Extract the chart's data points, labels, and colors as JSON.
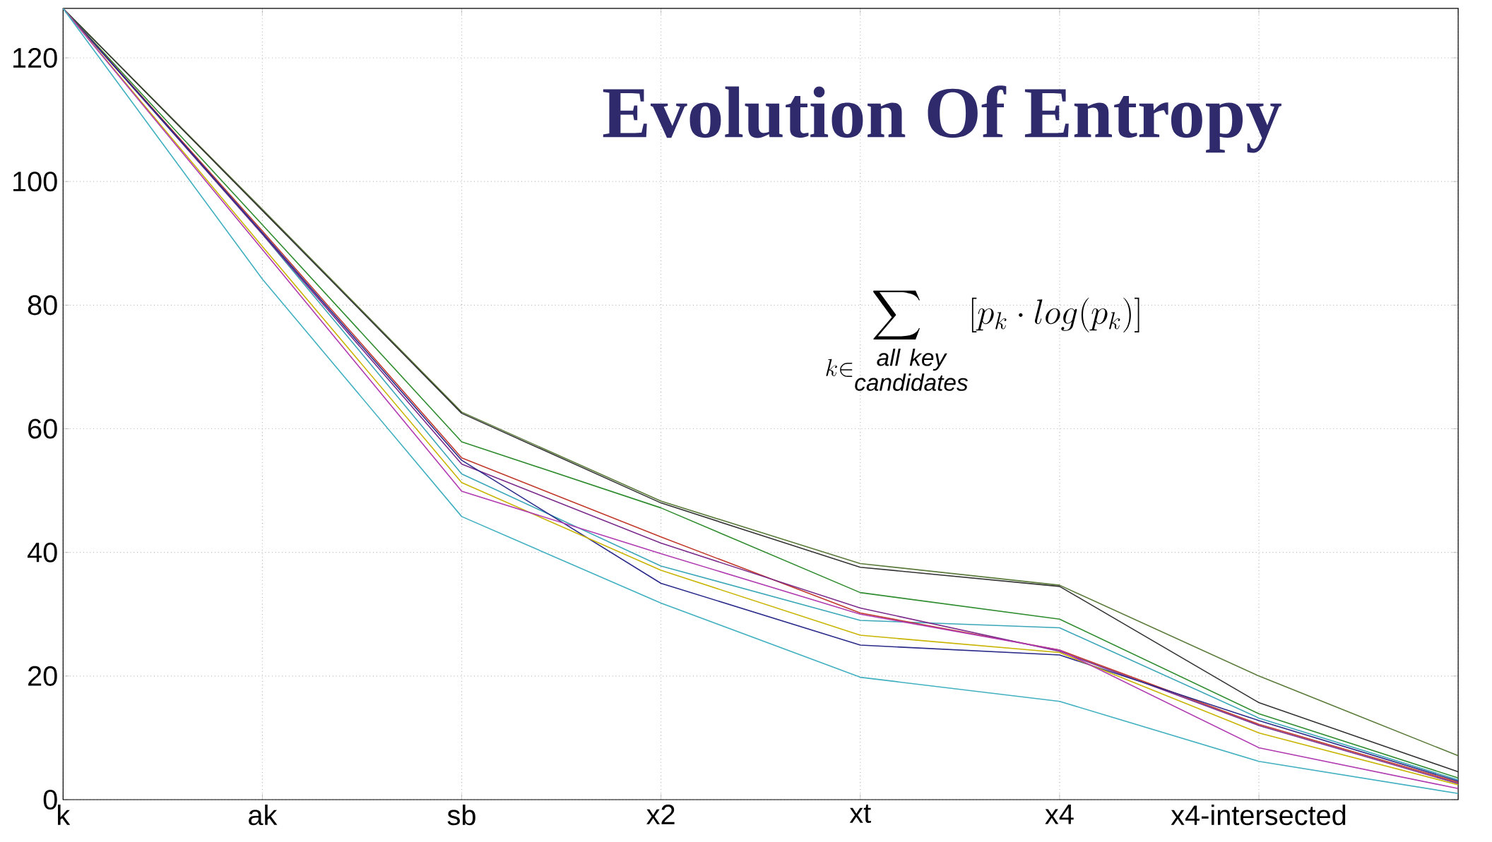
{
  "chart_data": {
    "type": "line",
    "title": "Evolution Of Entropy",
    "annotations": [
      "\\sum\\limits_{k\\in \\substack{\\mathit{all\\ key}\\\\ \\mathit{candidates}}} [p_k \\cdot log(p_k)]"
    ],
    "categories": [
      "k",
      "ak",
      "sb",
      "x2",
      "xt",
      "x4",
      "x4-intersected",
      null
    ],
    "ylim": [
      0,
      128
    ],
    "yticks": [
      0,
      20,
      40,
      60,
      80,
      100,
      120
    ],
    "grid": true,
    "marker": "none",
    "line_style": "solid",
    "series": [
      {
        "color": "#5a7a3a",
        "values": [
          128,
          95.5,
          62.7,
          48.3,
          38.2,
          34.7,
          20.0,
          7.1
        ]
      },
      {
        "color": "#333333",
        "values": [
          128,
          95.3,
          62.5,
          48.0,
          37.6,
          34.5,
          15.7,
          4.5
        ]
      },
      {
        "color": "#2e8b2e",
        "values": [
          128,
          93,
          57.9,
          47.2,
          33.5,
          29.2,
          13.9,
          3.5
        ]
      },
      {
        "color": "#3aa6b8",
        "values": [
          128,
          91.5,
          52.7,
          37.8,
          29.0,
          27.8,
          13.2,
          3.2
        ]
      },
      {
        "color": "#c0392b",
        "values": [
          128,
          92,
          55.3,
          42.5,
          30.2,
          24.2,
          12.2,
          2.8
        ]
      },
      {
        "color": "#7a2a8a",
        "values": [
          128,
          91.5,
          54.3,
          41.5,
          31.0,
          24.0,
          12.0,
          2.6
        ]
      },
      {
        "color": "#2a2a8a",
        "values": [
          128,
          91.7,
          54.9,
          35.0,
          25.0,
          23.4,
          12.8,
          3.0
        ]
      },
      {
        "color": "#c8b400",
        "values": [
          128,
          89.5,
          51.3,
          37.1,
          26.6,
          23.8,
          10.8,
          2.4
        ]
      },
      {
        "color": "#b03ab0",
        "values": [
          128,
          89,
          49.9,
          39.8,
          30.0,
          24.2,
          8.4,
          1.8
        ]
      },
      {
        "color": "#40b0c0",
        "values": [
          128,
          84.2,
          45.8,
          31.8,
          19.8,
          15.9,
          6.2,
          1.0
        ]
      }
    ]
  }
}
